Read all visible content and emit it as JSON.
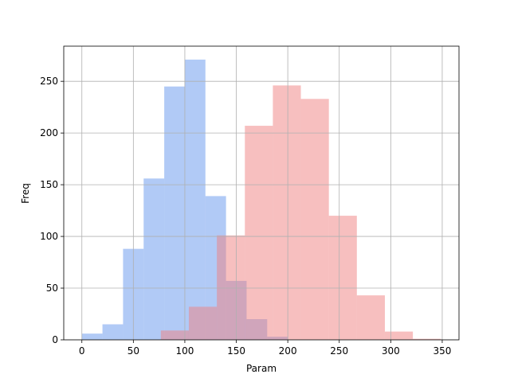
{
  "chart_data": {
    "type": "histogram",
    "xlabel": "Param",
    "ylabel": "Freq",
    "series": [
      {
        "color": "#6495ED",
        "bins": [
          0,
          20,
          40,
          60,
          80,
          100,
          120,
          140,
          160,
          180,
          200
        ],
        "values": [
          6,
          15,
          88,
          156,
          245,
          271,
          139,
          57,
          20,
          3
        ]
      },
      {
        "color": "#F08080",
        "bins": [
          76.7,
          103.9,
          131.1,
          158.3,
          185.5,
          212.7,
          239.9,
          267.1,
          294.3,
          321.5,
          348.7
        ],
        "values": [
          9,
          32,
          101,
          207,
          246,
          233,
          120,
          43,
          8,
          1
        ]
      }
    ],
    "opacity": 0.5,
    "xlim": [
      -17.6,
      366.3
    ],
    "ylim": [
      0,
      284
    ],
    "xticks": [
      0,
      50,
      100,
      150,
      200,
      250,
      300,
      350
    ],
    "yticks": [
      0,
      50,
      100,
      150,
      200,
      250
    ],
    "grid": true
  }
}
